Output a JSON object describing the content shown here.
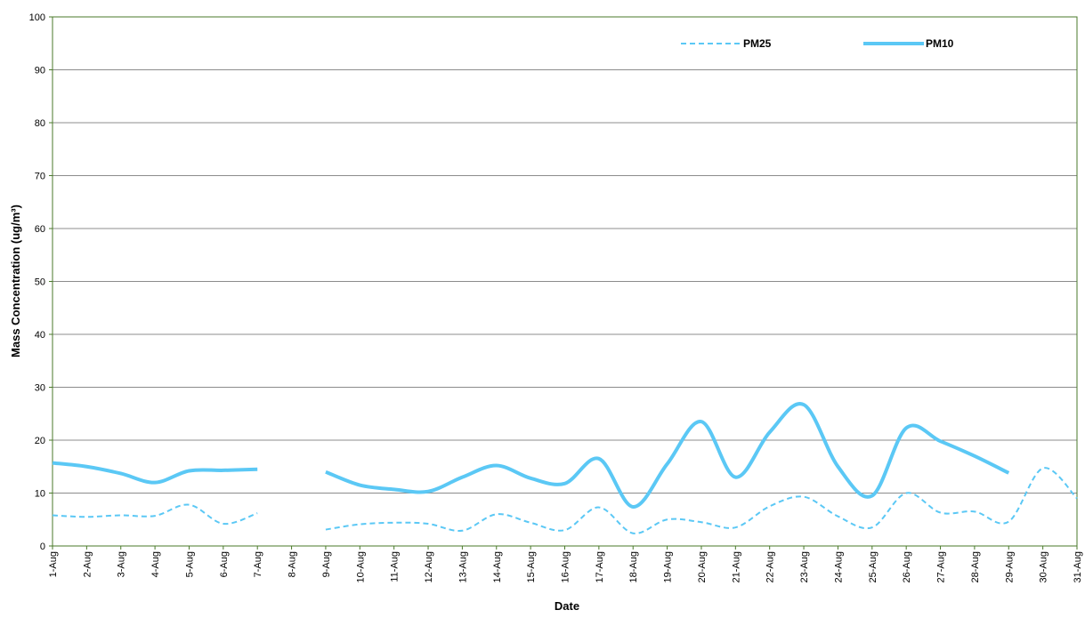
{
  "chart_data": {
    "type": "line",
    "x_label": "Date",
    "y_label": "Mass Concentration (ug/m³)",
    "categories": [
      "1-Aug",
      "2-Aug",
      "3-Aug",
      "4-Aug",
      "5-Aug",
      "6-Aug",
      "7-Aug",
      "8-Aug",
      "9-Aug",
      "10-Aug",
      "11-Aug",
      "12-Aug",
      "13-Aug",
      "14-Aug",
      "15-Aug",
      "16-Aug",
      "17-Aug",
      "18-Aug",
      "19-Aug",
      "20-Aug",
      "21-Aug",
      "22-Aug",
      "23-Aug",
      "24-Aug",
      "25-Aug",
      "26-Aug",
      "27-Aug",
      "28-Aug",
      "29-Aug",
      "30-Aug",
      "31-Aug"
    ],
    "series": [
      {
        "name": "PM25",
        "color": "#5bc8f5",
        "dashed": true,
        "values": [
          5.8,
          5.5,
          5.8,
          5.7,
          7.8,
          4.2,
          6.2,
          null,
          3.1,
          4.1,
          4.4,
          4.2,
          2.9,
          6,
          4.4,
          3,
          7.3,
          2.4,
          5,
          4.5,
          3.5,
          7.5,
          9.3,
          5.6,
          3.5,
          10,
          6.3,
          6.5,
          4.6,
          14.7,
          9
        ]
      },
      {
        "name": "PM10",
        "color": "#5bc8f5",
        "dashed": false,
        "values": [
          15.7,
          15,
          13.7,
          12,
          14.2,
          14.3,
          14.5,
          null,
          14,
          11.5,
          10.7,
          10.3,
          13,
          15.2,
          12.8,
          11.8,
          16.5,
          7.4,
          15.5,
          23.5,
          13,
          21.5,
          26.7,
          15,
          9.5,
          22.3,
          19.8,
          17,
          13.8,
          null,
          null
        ]
      }
    ],
    "ylim": [
      0,
      100
    ],
    "yticks": [
      0,
      10,
      20,
      30,
      40,
      50,
      60,
      70,
      80,
      90,
      100
    ],
    "grid": true,
    "smooth": true,
    "legend": "top"
  }
}
